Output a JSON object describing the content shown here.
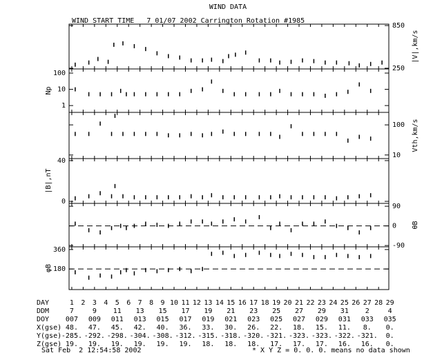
{
  "title": "WIND DATA",
  "subtitle": "WIND START TIME   7 01/07 2002 Carrington Rotation #1985",
  "x_axis": {
    "xlim": [
      0.76,
      28.9
    ],
    "xticks": [
      1,
      2,
      3,
      4,
      5,
      6,
      7,
      8,
      9,
      10,
      11,
      12,
      13,
      14,
      15,
      16,
      17,
      18,
      19,
      20,
      21,
      22,
      23,
      24,
      25,
      26,
      27,
      28
    ]
  },
  "chart_data": [
    {
      "type": "scatter",
      "ylabel": "|V|,km/s",
      "yaxis_side": "right",
      "log": false,
      "ylim": [
        240,
        870
      ],
      "yticks": [
        250,
        850
      ],
      "color": "#000000",
      "x": [
        1.3,
        2.5,
        3.3,
        4.2,
        4.7,
        5.5,
        6.5,
        7.5,
        8.5,
        9.5,
        10.5,
        11.5,
        12.5,
        13.3,
        14.3,
        14.8,
        15.4,
        16.3,
        17.5,
        18.5,
        19.3,
        20.3,
        21.3,
        22.3,
        23.3,
        24.3,
        25.4,
        26.3,
        27.3,
        28.3
      ],
      "values": [
        300,
        330,
        380,
        340,
        580,
        600,
        560,
        520,
        460,
        420,
        400,
        360,
        360,
        370,
        350,
        420,
        440,
        470,
        360,
        360,
        330,
        340,
        360,
        350,
        330,
        330,
        320,
        290,
        310,
        330
      ]
    },
    {
      "type": "scatter",
      "ylabel": "Np",
      "yaxis_side": "left",
      "log": true,
      "ylim": [
        0.38,
        180
      ],
      "yticks": [
        1,
        10,
        100
      ],
      "color": "#000000",
      "x": [
        1.3,
        2.5,
        3.5,
        4.5,
        5.3,
        5.8,
        6.5,
        7.5,
        8.5,
        9.5,
        10.5,
        11.5,
        12.5,
        13.3,
        14.3,
        15.3,
        16.3,
        17.5,
        18.5,
        19.3,
        20.3,
        21.3,
        22.3,
        23.3,
        24.3,
        25.3,
        26.3,
        27.3
      ],
      "values": [
        10,
        5,
        5,
        5,
        8,
        5,
        5,
        5,
        5,
        5,
        5,
        8,
        10,
        30,
        8,
        5,
        5,
        5,
        5,
        8,
        5,
        5,
        5,
        4,
        5,
        7,
        20,
        8
      ]
    },
    {
      "type": "scatter",
      "ylabel": "Vth,km/s",
      "yaxis_side": "right",
      "log": true,
      "ylim": [
        7.6,
        260
      ],
      "yticks": [
        10,
        100
      ],
      "color": "#000000",
      "x": [
        1.3,
        2.5,
        3.5,
        4.5,
        4.8,
        5.5,
        6.5,
        7.5,
        8.5,
        9.5,
        10.5,
        11.5,
        12.5,
        13.3,
        14.3,
        15.3,
        16.3,
        17.5,
        18.5,
        19.3,
        20.3,
        21.3,
        22.3,
        23.3,
        24.3,
        25.3,
        26.3,
        27.3
      ],
      "values": [
        50,
        50,
        110,
        50,
        200,
        50,
        50,
        50,
        50,
        45,
        45,
        50,
        45,
        50,
        60,
        50,
        50,
        50,
        50,
        40,
        90,
        50,
        50,
        50,
        50,
        30,
        40,
        35
      ]
    },
    {
      "type": "scatter",
      "ylabel": "|B|,nT",
      "yaxis_side": "left",
      "log": false,
      "ylim": [
        -2,
        42
      ],
      "yticks": [
        0,
        40
      ],
      "color": "#000000",
      "x": [
        1.3,
        2.5,
        3.5,
        4.5,
        4.8,
        5.5,
        6.5,
        7.5,
        8.5,
        9.5,
        10.5,
        11.5,
        12.5,
        13.3,
        14.3,
        15.3,
        16.3,
        17.5,
        18.5,
        19.3,
        20.3,
        21.3,
        22.3,
        23.3,
        24.3,
        25.3,
        26.3,
        27.3
      ],
      "values": [
        3,
        5,
        8,
        5,
        15,
        5,
        4,
        4,
        4,
        4,
        4,
        5,
        4,
        6,
        4,
        4,
        4,
        4,
        4,
        5,
        4,
        4,
        4,
        4,
        3,
        4,
        5,
        6
      ]
    },
    {
      "type": "scatter",
      "ylabel": "θB",
      "yaxis_side": "right",
      "log": false,
      "ylim": [
        -96,
        103
      ],
      "yticks": [
        -90,
        0,
        90
      ],
      "reference_line": 0,
      "color": "#000000",
      "x": [
        1.3,
        2.5,
        3.5,
        4.5,
        5.3,
        5.8,
        6.5,
        7.5,
        8.5,
        9.5,
        10.5,
        11.5,
        12.5,
        13.3,
        14.3,
        15.3,
        16.3,
        17.5,
        18.5,
        19.3,
        20.3,
        21.3,
        22.3,
        23.3,
        24.3,
        25.3,
        26.3,
        27.3
      ],
      "values": [
        10,
        -20,
        -30,
        -10,
        0,
        -10,
        0,
        10,
        5,
        0,
        10,
        20,
        20,
        10,
        20,
        30,
        20,
        40,
        -10,
        10,
        -20,
        10,
        10,
        20,
        0,
        -10,
        -30,
        -10
      ]
    },
    {
      "type": "scatter",
      "ylabel": "φB",
      "yaxis_side": "left",
      "log": false,
      "ylim": [
        -10,
        385
      ],
      "yticks": [
        180,
        360
      ],
      "reference_line": 180,
      "color": "#000000",
      "x": [
        1.3,
        2.5,
        3.5,
        4.5,
        5.3,
        5.8,
        6.5,
        7.5,
        8.5,
        9.5,
        10.5,
        11.5,
        12.5,
        13.3,
        14.3,
        15.3,
        16.3,
        17.5,
        18.5,
        19.3,
        20.3,
        21.3,
        22.3,
        23.3,
        24.3,
        25.3,
        26.3,
        27.3
      ],
      "values": [
        150,
        100,
        120,
        110,
        150,
        170,
        140,
        170,
        160,
        170,
        180,
        160,
        180,
        320,
        330,
        300,
        310,
        330,
        310,
        300,
        320,
        310,
        290,
        290,
        310,
        300,
        290,
        300
      ]
    }
  ],
  "table": {
    "rows": [
      {
        "label": "DAY",
        "values": [
          "1",
          "2",
          "3",
          "4",
          "5",
          "6",
          "7",
          "8",
          "9",
          "10",
          "11",
          "12",
          "13",
          "14",
          "15",
          "16",
          "17",
          "18",
          "19",
          "20",
          "21",
          "22",
          "23",
          "24",
          "25",
          "26",
          "27",
          "28",
          "29"
        ]
      },
      {
        "label": "DDM",
        "values": [
          "7",
          "9",
          "11",
          "13",
          "15",
          "17",
          "19",
          "21",
          "23",
          "25",
          "27",
          "29",
          "31",
          "2",
          "4"
        ]
      },
      {
        "label": "DOY",
        "values": [
          "007",
          "009",
          "011",
          "013",
          "015",
          "017",
          "019",
          "021",
          "023",
          "025",
          "027",
          "029",
          "031",
          "033",
          "035"
        ]
      },
      {
        "label": "X(gse)",
        "values": [
          "48.",
          "47.",
          "45.",
          "42.",
          "40.",
          "36.",
          "33.",
          "30.",
          "26.",
          "22.",
          "18.",
          "15.",
          "11.",
          "8.",
          "0."
        ]
      },
      {
        "label": "Y(gse)",
        "values": [
          "-285.",
          "-292.",
          "-298.",
          "-304.",
          "-308.",
          "-312.",
          "-315.",
          "-318.",
          "-320.",
          "-321.",
          "-323.",
          "-323.",
          "-322.",
          "-321.",
          "0."
        ]
      },
      {
        "label": "Z(gse)",
        "values": [
          "19.",
          "19.",
          "19.",
          "19.",
          "19.",
          "19.",
          "18.",
          "18.",
          "18.",
          "17.",
          "17.",
          "17.",
          "16.",
          "16.",
          "0."
        ]
      }
    ]
  },
  "footer": {
    "date": "Sat Feb  2 12:54:58 2002",
    "note": "* X Y Z = 0. 0. 0. means no data shown"
  }
}
